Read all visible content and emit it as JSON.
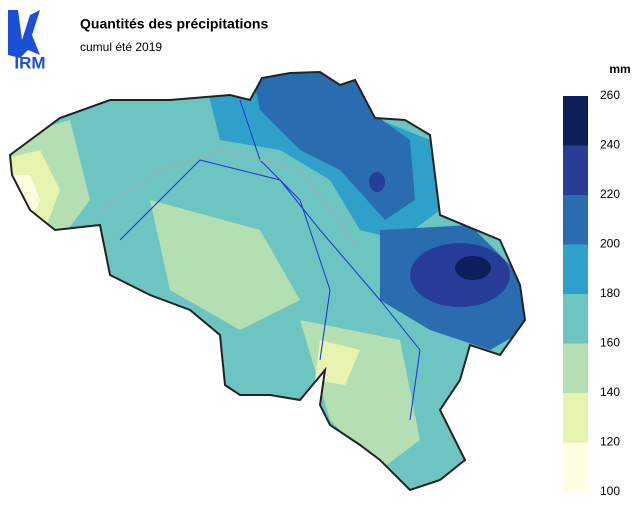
{
  "logo": {
    "text": "IRM"
  },
  "header": {
    "title": "Quantités des précipitations",
    "subtitle": "cumul été 2019"
  },
  "legend": {
    "unit": "mm",
    "ticks": [
      100,
      120,
      140,
      160,
      180,
      200,
      220,
      240,
      260
    ],
    "colors": [
      "#fefee0",
      "#e6f4b0",
      "#b3dfb3",
      "#6cc5c0",
      "#2fa0c9",
      "#2a6cb0",
      "#283d97",
      "#0c1f5a"
    ]
  }
}
